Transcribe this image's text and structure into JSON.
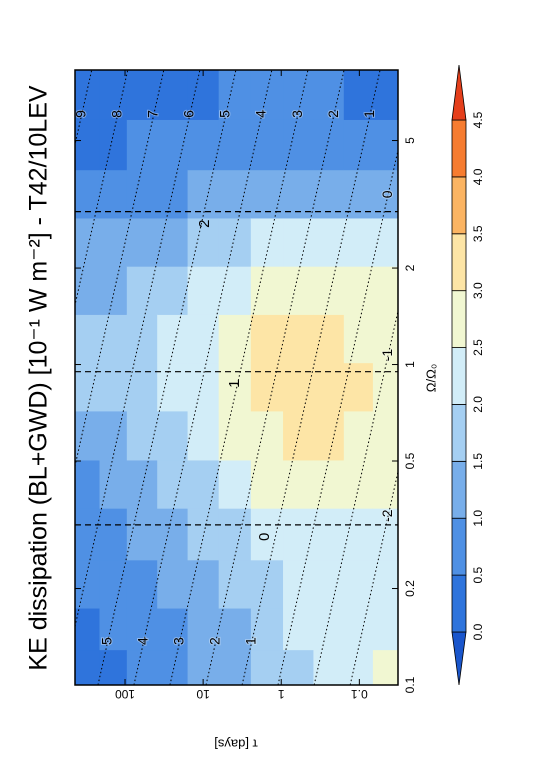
{
  "chart_data": {
    "type": "contour",
    "title": "KE dissipation (BL+GWD) [10⁻¹ W m⁻²] - T42/10LEV",
    "xlabel": "Ω/Ω₀",
    "ylabel": "τ [days]",
    "xscale": "log",
    "yscale": "log",
    "xlim": [
      0.1,
      8.3
    ],
    "ylim": [
      0.032,
      437
    ],
    "xticks": [
      0.1,
      0.2,
      0.5,
      1,
      2,
      5
    ],
    "yticks": [
      0.1,
      1,
      10,
      100
    ],
    "x": [
      0.11,
      0.15,
      0.2,
      0.3,
      0.42,
      0.6,
      0.85,
      1.2,
      1.7,
      2.4,
      3.4,
      4.8,
      7
    ],
    "y": [
      300,
      150,
      60,
      25,
      10,
      4,
      1.5,
      0.6,
      0.25,
      0.1,
      0.045
    ],
    "z": [
      [
        0.3,
        0.4,
        0.5,
        0.7,
        0.9,
        1.2,
        1.6,
        1.6,
        1.3,
        1.0,
        0.6,
        0.4,
        0.3
      ],
      [
        0.4,
        0.5,
        0.7,
        0.9,
        1.1,
        1.4,
        1.7,
        1.7,
        1.4,
        1.1,
        0.7,
        0.4,
        0.3
      ],
      [
        0.6,
        0.7,
        0.9,
        1.1,
        1.3,
        1.6,
        1.9,
        1.9,
        1.6,
        1.2,
        0.8,
        0.5,
        0.3
      ],
      [
        0.8,
        0.9,
        1.1,
        1.3,
        1.6,
        1.9,
        2.1,
        2.1,
        1.8,
        1.4,
        0.9,
        0.6,
        0.4
      ],
      [
        1.0,
        1.1,
        1.3,
        1.6,
        1.9,
        2.2,
        2.4,
        2.4,
        2.1,
        1.6,
        1.1,
        0.7,
        0.4
      ],
      [
        1.3,
        1.4,
        1.6,
        1.9,
        2.2,
        2.5,
        2.7,
        2.7,
        2.3,
        1.8,
        1.2,
        0.8,
        0.5
      ],
      [
        1.6,
        1.7,
        1.9,
        2.2,
        2.5,
        2.9,
        3.1,
        3.1,
        2.6,
        2.0,
        1.3,
        0.9,
        0.5
      ],
      [
        1.9,
        2.0,
        2.1,
        2.4,
        2.8,
        3.2,
        3.3,
        3.2,
        2.8,
        2.2,
        1.4,
        0.9,
        0.6
      ],
      [
        2.1,
        2.0,
        2.0,
        2.3,
        2.7,
        3.1,
        3.2,
        3.1,
        2.7,
        2.2,
        1.4,
        0.9,
        0.5
      ],
      [
        2.4,
        2.2,
        2.0,
        2.2,
        2.6,
        2.9,
        3.0,
        2.9,
        2.6,
        2.1,
        1.4,
        0.8,
        0.4
      ],
      [
        2.6,
        2.3,
        2.0,
        2.1,
        2.5,
        2.7,
        2.8,
        2.7,
        2.5,
        2.0,
        1.3,
        0.8,
        0.4
      ]
    ],
    "colorbar": {
      "levels": [
        {
          "value": 0,
          "label": "0.0"
        },
        0.5,
        {
          "value": 1,
          "label": "1.0"
        },
        1.5,
        {
          "value": 2,
          "label": "2.0"
        },
        2.5,
        {
          "value": 3,
          "label": "3.0"
        },
        3.5,
        {
          "value": 4,
          "label": "4.0"
        },
        4.5
      ],
      "colors": [
        "#1a56cc",
        "#2f74dc",
        "#4f90e4",
        "#78aeea",
        "#a5cff2",
        "#d2edf8",
        "#f1f7d2",
        "#fde5a6",
        "#fbb462",
        "#f67c30",
        "#e53f1b"
      ]
    },
    "dotted_lines": [
      {
        "level": 9,
        "x": [
          0.1,
          8.3
        ],
        "y": [
          15600,
          267
        ]
      },
      {
        "level": 8,
        "x": [
          0.1,
          8.3
        ],
        "y": [
          5400,
          92.3
        ]
      },
      {
        "level": 7,
        "x": [
          0.1,
          8.3
        ],
        "y": [
          1860,
          31.9
        ]
      },
      {
        "level": 6,
        "x": [
          0.1,
          8.3
        ],
        "y": [
          644,
          11.0
        ]
      },
      {
        "level": 5,
        "x": [
          0.1,
          8.3
        ],
        "y": [
          222,
          3.81
        ]
      },
      {
        "level": 4,
        "x": [
          0.1,
          8.3
        ],
        "y": [
          76.9,
          1.32
        ]
      },
      {
        "level": 3,
        "x": [
          0.1,
          8.3
        ],
        "y": [
          26.6,
          0.455
        ]
      },
      {
        "level": 2,
        "x": [
          0.1,
          8.3
        ],
        "y": [
          9.18,
          0.157
        ]
      },
      {
        "level": 1,
        "x": [
          0.1,
          8.3
        ],
        "y": [
          3.17,
          0.0543
        ]
      },
      {
        "level": 0,
        "x": [
          0.1,
          8.3
        ],
        "y": [
          1.1,
          0.0188
        ]
      },
      {
        "level": -1,
        "x": [
          0.1,
          8.3
        ],
        "y": [
          0.379,
          0.0065
        ]
      },
      {
        "level": -2,
        "x": [
          0.1,
          8.3
        ],
        "y": [
          0.131,
          0.00225
        ]
      }
    ],
    "dashed_lines": [
      {
        "x": 0.316,
        "label": "0"
      },
      {
        "x": 0.95,
        "label": "1"
      },
      {
        "x": 3.0,
        "label": "2"
      }
    ]
  }
}
